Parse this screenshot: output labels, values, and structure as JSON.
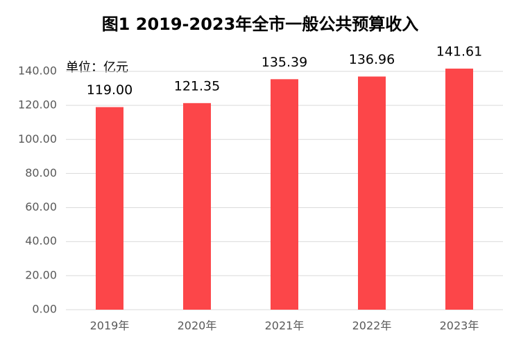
{
  "chart_data": {
    "type": "bar",
    "title": "图1  2019-2023年全市一般公共预算收入",
    "unit_label": "单位：亿元",
    "categories": [
      "2019年",
      "2020年",
      "2021年",
      "2022年",
      "2023年"
    ],
    "values": [
      119.0,
      121.35,
      135.39,
      136.96,
      141.61
    ],
    "value_labels": [
      "119.00",
      "121.35",
      "135.39",
      "136.96",
      "141.61"
    ],
    "color": "#fc4649",
    "ylim": [
      0,
      140
    ],
    "yticks": [
      {
        "value": 0,
        "label": "0.00"
      },
      {
        "value": 20,
        "label": "20.00"
      },
      {
        "value": 40,
        "label": "40.00"
      },
      {
        "value": 60,
        "label": "60.00"
      },
      {
        "value": 80,
        "label": "80.00"
      },
      {
        "value": 100,
        "label": "100.00"
      },
      {
        "value": 120,
        "label": "120.00"
      },
      {
        "value": 140,
        "label": "140.00"
      }
    ],
    "grid": true
  }
}
